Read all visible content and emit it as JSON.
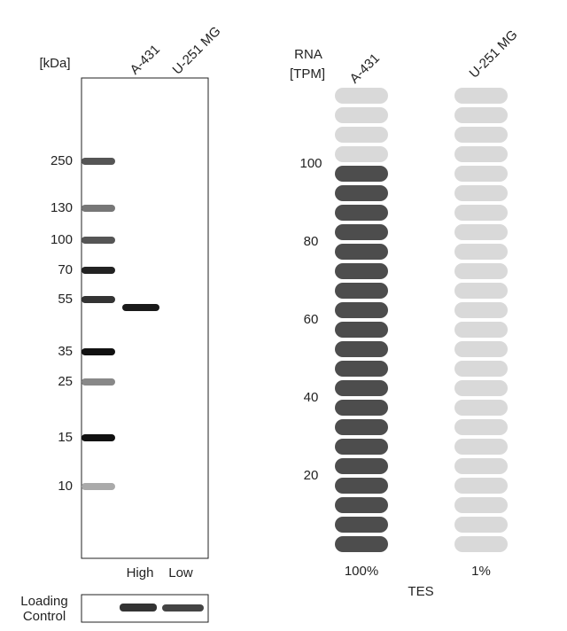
{
  "blot": {
    "unit_label": "[kDa]",
    "lanes": [
      "A-431",
      "U-251 MG"
    ],
    "markers": [
      "250",
      "130",
      "100",
      "70",
      "55",
      "35",
      "25",
      "15",
      "10"
    ],
    "levels": [
      "High",
      "Low"
    ],
    "loading_control": [
      "Loading",
      "Control"
    ]
  },
  "chart_data": {
    "type": "pill-bar",
    "axis_label": [
      "RNA",
      "[TPM]"
    ],
    "categories": [
      "A-431",
      "U-251 MG"
    ],
    "values": [
      100,
      1
    ],
    "value_labels": [
      "100%",
      "1%"
    ],
    "xlabel": "TES",
    "ylim": [
      0,
      120
    ],
    "yticks": [
      20,
      40,
      60,
      80,
      100
    ],
    "color": "#4d4d4d",
    "empty_color": "#d9d9d9"
  }
}
